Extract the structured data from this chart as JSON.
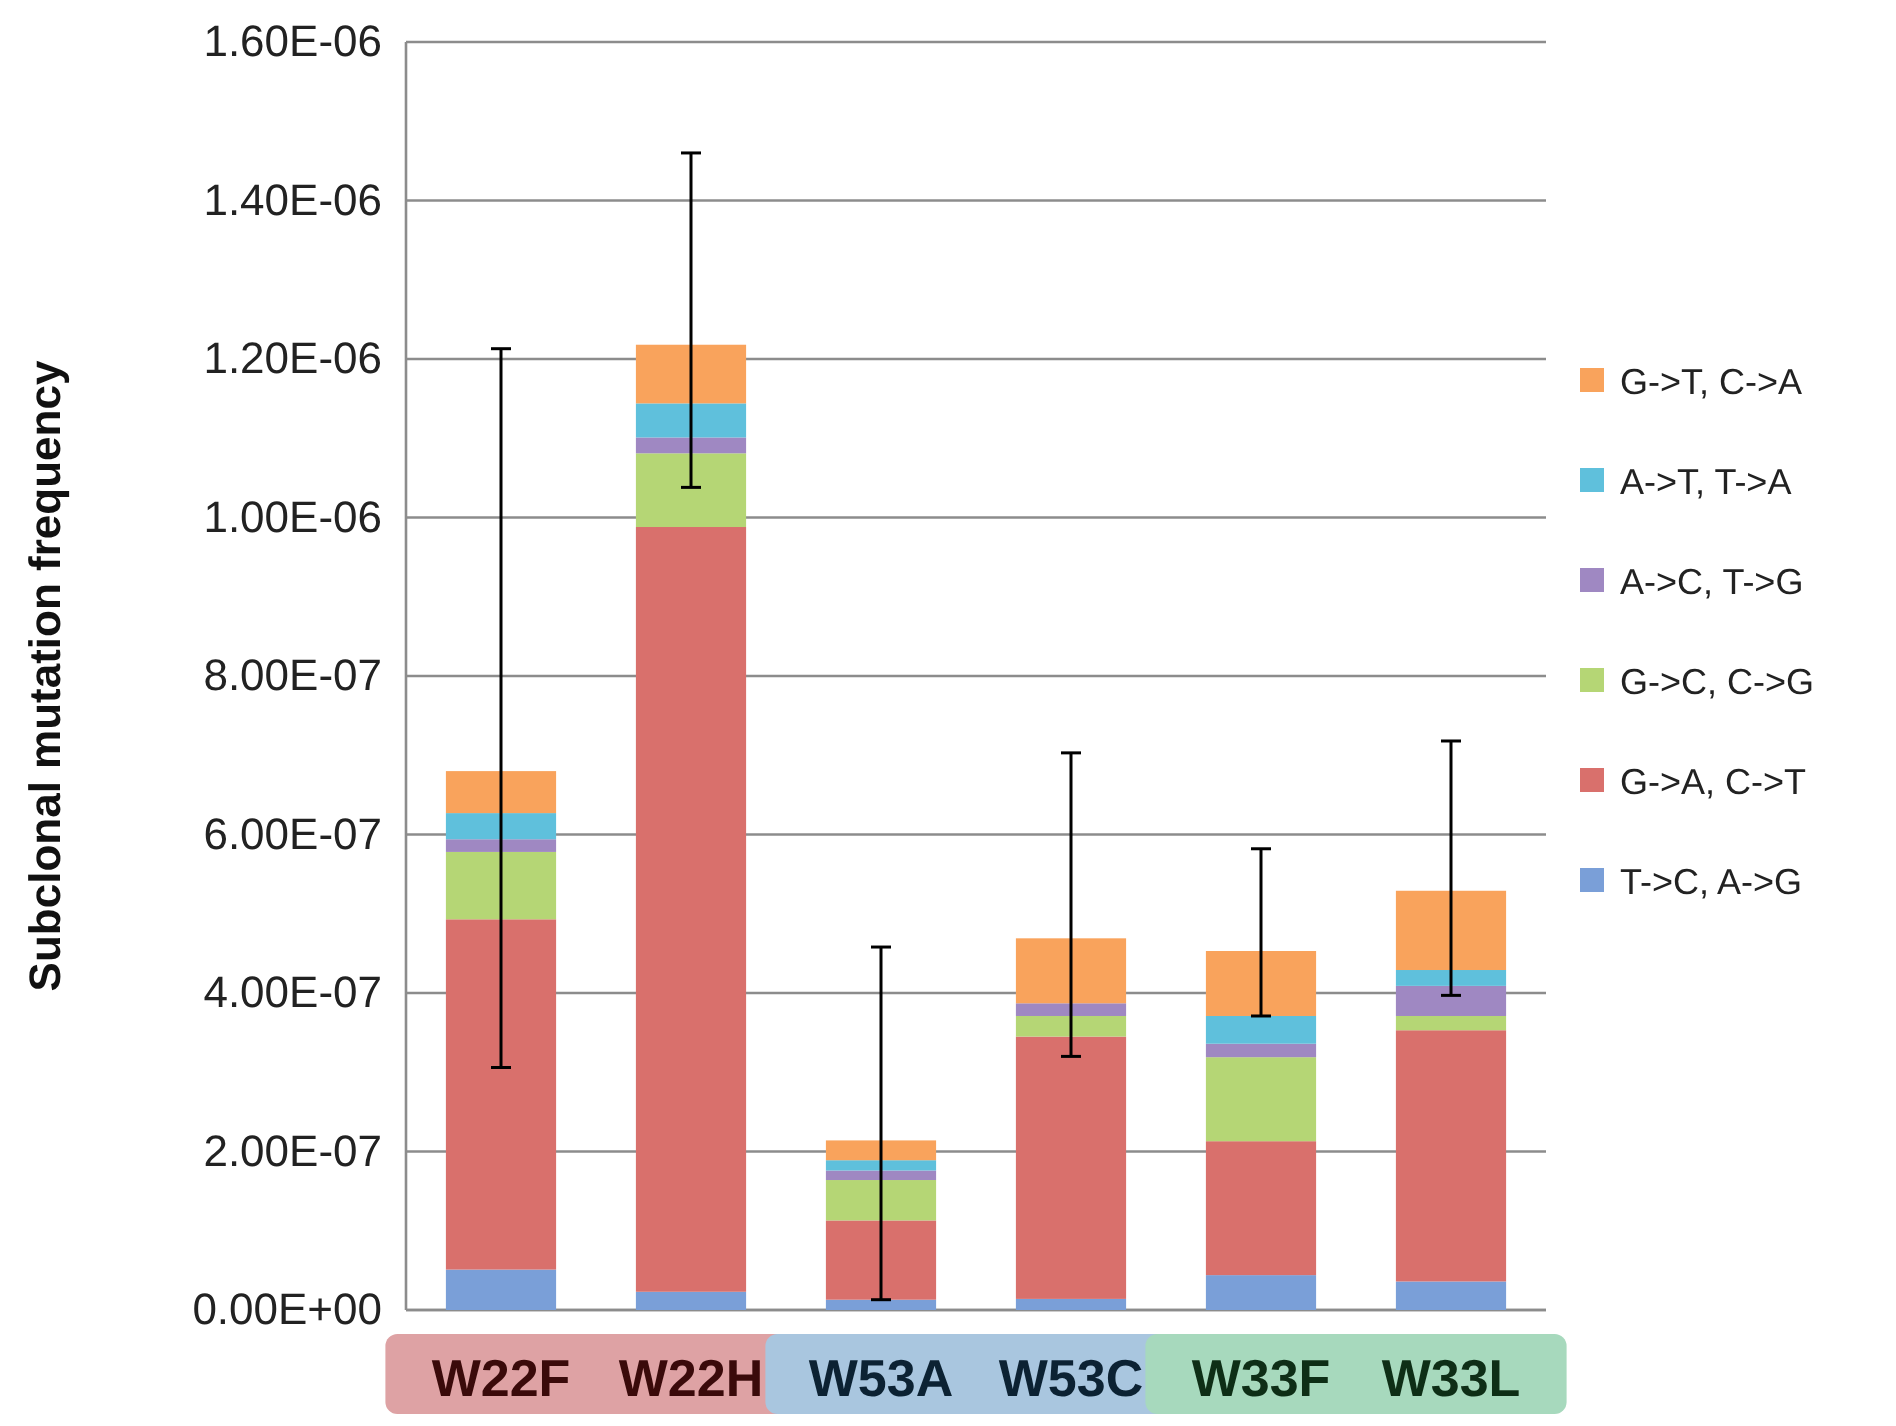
{
  "chart_data": {
    "type": "bar",
    "stacked": true,
    "ylabel": "Subclonal mutation frequency",
    "categories": [
      "W22F",
      "W22H",
      "W53A",
      "W53C",
      "W33F",
      "W33L"
    ],
    "series": [
      {
        "name": "T->C, A->G",
        "color": "#7a9fd8",
        "values": [
          5.1e-08,
          2.3e-08,
          1.3e-08,
          1.4e-08,
          4.4e-08,
          3.6e-08
        ]
      },
      {
        "name": "G->A, C->T",
        "color": "#d9706c",
        "values": [
          4.42e-07,
          9.65e-07,
          1e-07,
          3.31e-07,
          1.69e-07,
          3.17e-07
        ]
      },
      {
        "name": "G->C, C->G",
        "color": "#b5d675",
        "values": [
          8.5e-08,
          9.3e-08,
          5.1e-08,
          2.6e-08,
          1.06e-07,
          1.8e-08
        ]
      },
      {
        "name": "A->C, T->G",
        "color": "#9f88c2",
        "values": [
          1.6e-08,
          2e-08,
          1.2e-08,
          1.6e-08,
          1.7e-08,
          3.8e-08
        ]
      },
      {
        "name": "A->T, T->A",
        "color": "#5fc0dc",
        "values": [
          3.3e-08,
          4.3e-08,
          1.3e-08,
          0,
          3.5e-08,
          2e-08
        ]
      },
      {
        "name": "G->T, C->A",
        "color": "#f9a35c",
        "values": [
          5.3e-08,
          7.4e-08,
          2.5e-08,
          8.2e-08,
          8.2e-08,
          1e-07
        ],
        "errors": [
          [
            3.06e-07,
            1.213e-06
          ],
          [
            1.038e-06,
            1.46e-06
          ],
          [
            1.3e-08,
            4.58e-07
          ],
          [
            3.2e-07,
            7.03e-07
          ],
          [
            3.71e-07,
            5.82e-07
          ],
          [
            3.97e-07,
            7.18e-07
          ]
        ]
      }
    ],
    "ylim": [
      0,
      1.6e-06
    ],
    "yticks": [
      {
        "value": 0,
        "label": "0.00E+00"
      },
      {
        "value": 2e-07,
        "label": "2.00E-07"
      },
      {
        "value": 4e-07,
        "label": "4.00E-07"
      },
      {
        "value": 6e-07,
        "label": "6.00E-07"
      },
      {
        "value": 8e-07,
        "label": "8.00E-07"
      },
      {
        "value": 1e-06,
        "label": "1.00E-06"
      },
      {
        "value": 1.2e-06,
        "label": "1.20E-06"
      },
      {
        "value": 1.4e-06,
        "label": "1.40E-06"
      },
      {
        "value": 1.6e-06,
        "label": "1.60E-06"
      }
    ],
    "grid": "y",
    "legend": "right"
  }
}
